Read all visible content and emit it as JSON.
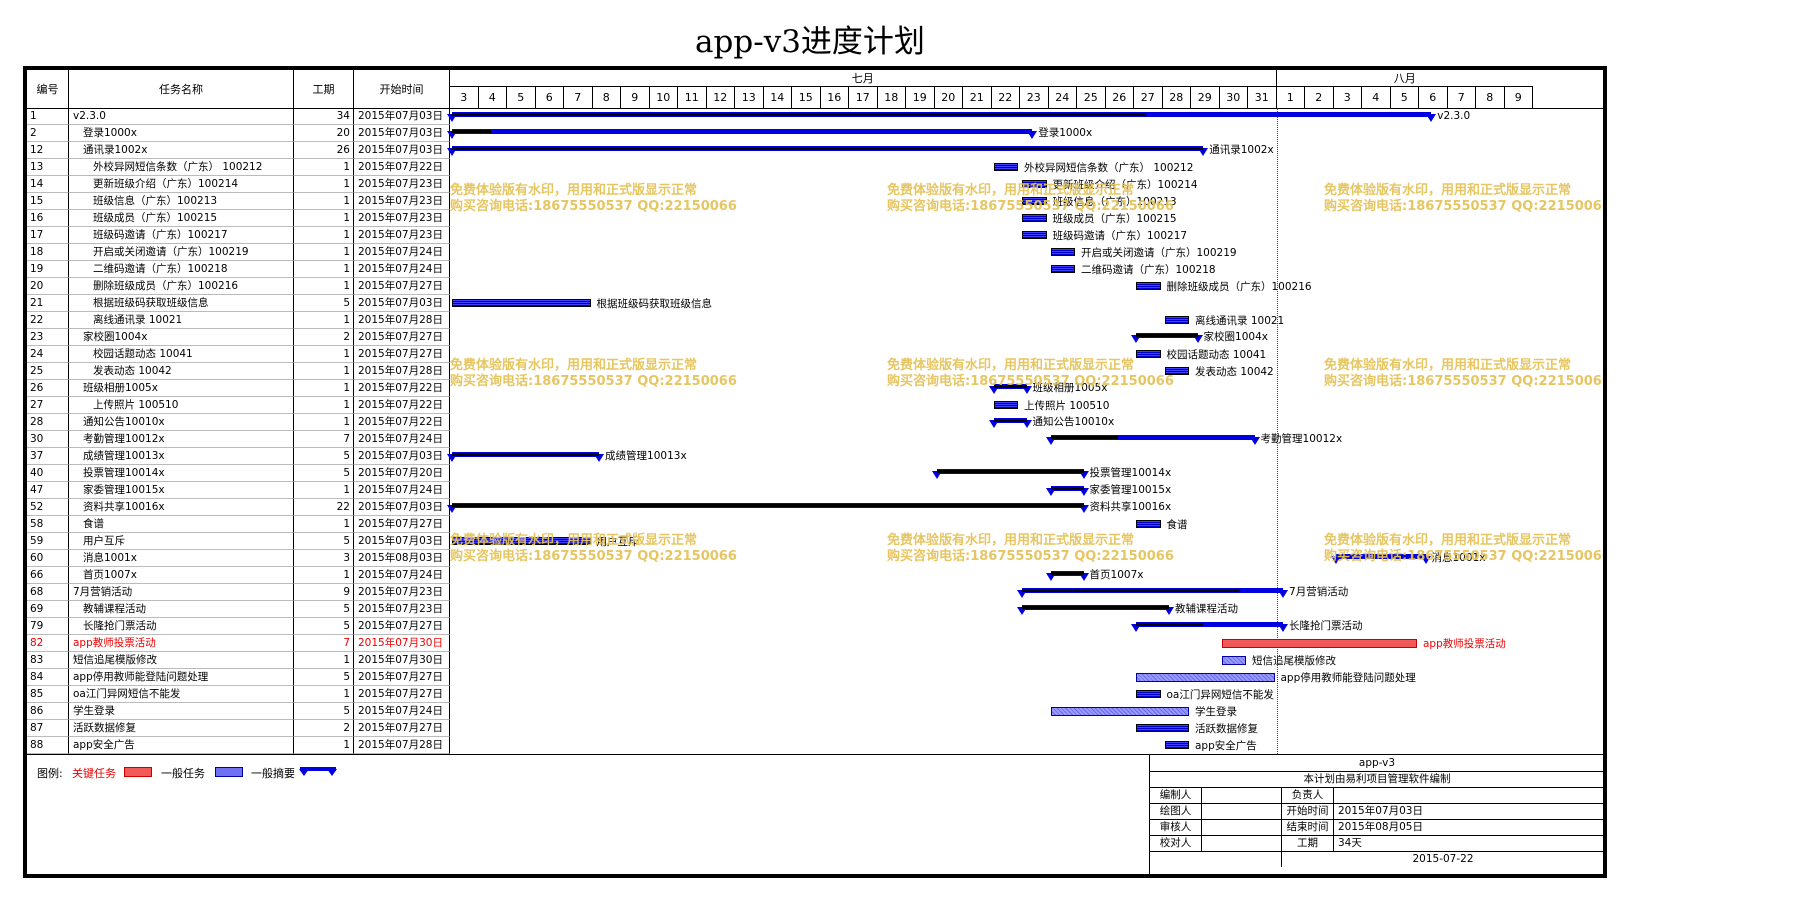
{
  "title": "app-v3进度计划",
  "columns": {
    "id": "编号",
    "name": "任务名称",
    "duration": "工期",
    "start": "开始时间"
  },
  "months": [
    {
      "label": "七月"
    },
    {
      "label": "八月"
    }
  ],
  "days": [
    "3",
    "4",
    "5",
    "6",
    "7",
    "8",
    "9",
    "10",
    "11",
    "12",
    "13",
    "14",
    "15",
    "16",
    "17",
    "18",
    "19",
    "20",
    "21",
    "22",
    "23",
    "24",
    "25",
    "26",
    "27",
    "28",
    "29",
    "30",
    "31",
    "1",
    "2",
    "3",
    "4",
    "5",
    "6",
    "7",
    "8",
    "9"
  ],
  "tasks": [
    {
      "id": "1",
      "name": "v2.3.0",
      "indent": 0,
      "duration": "34",
      "start": "2015年07月03日",
      "type": "summary",
      "bar_start_day": 0,
      "bar_days": 34.5,
      "progress_days": 24.5,
      "label": "v2.3.0"
    },
    {
      "id": "2",
      "name": "登录1000x",
      "indent": 1,
      "duration": "20",
      "start": "2015年07月03日",
      "type": "summary",
      "bar_start_day": 0,
      "bar_days": 20.5,
      "progress_days": 1.5,
      "label": "登录1000x"
    },
    {
      "id": "12",
      "name": "通讯录1002x",
      "indent": 1,
      "duration": "26",
      "start": "2015年07月03日",
      "type": "summary",
      "bar_start_day": 0,
      "bar_days": 26.5,
      "progress_days": 26.5,
      "label": "通讯录1002x"
    },
    {
      "id": "13",
      "name": "外校异网短信条数（广东） 100212",
      "indent": 2,
      "duration": "1",
      "start": "2015年07月22日",
      "type": "task",
      "bar_start_day": 19,
      "bar_days": 1,
      "label": "外校异网短信条数（广东） 100212"
    },
    {
      "id": "14",
      "name": "更新班级介绍（广东）100214",
      "indent": 2,
      "duration": "1",
      "start": "2015年07月23日",
      "type": "task",
      "bar_start_day": 20,
      "bar_days": 1,
      "label": "更新班级介绍（广东）100214"
    },
    {
      "id": "15",
      "name": "班级信息（广东）100213",
      "indent": 2,
      "duration": "1",
      "start": "2015年07月23日",
      "type": "task",
      "bar_start_day": 20,
      "bar_days": 1,
      "label": "班级信息（广东）100213"
    },
    {
      "id": "16",
      "name": "班级成员（广东）100215",
      "indent": 2,
      "duration": "1",
      "start": "2015年07月23日",
      "type": "task",
      "bar_start_day": 20,
      "bar_days": 1,
      "label": "班级成员（广东）100215"
    },
    {
      "id": "17",
      "name": "班级码邀请（广东）100217",
      "indent": 2,
      "duration": "1",
      "start": "2015年07月23日",
      "type": "task",
      "bar_start_day": 20,
      "bar_days": 1,
      "label": "班级码邀请（广东）100217"
    },
    {
      "id": "18",
      "name": "开启或关闭邀请（广东）100219",
      "indent": 2,
      "duration": "1",
      "start": "2015年07月24日",
      "type": "task",
      "bar_start_day": 21,
      "bar_days": 1,
      "label": "开启或关闭邀请（广东）100219"
    },
    {
      "id": "19",
      "name": "二维码邀请（广东）100218",
      "indent": 2,
      "duration": "1",
      "start": "2015年07月24日",
      "type": "task",
      "bar_start_day": 21,
      "bar_days": 1,
      "label": "二维码邀请（广东）100218"
    },
    {
      "id": "20",
      "name": "删除班级成员（广东）100216",
      "indent": 2,
      "duration": "1",
      "start": "2015年07月27日",
      "type": "task",
      "bar_start_day": 24,
      "bar_days": 1,
      "label": "删除班级成员（广东）100216"
    },
    {
      "id": "21",
      "name": "根据班级码获取班级信息",
      "indent": 2,
      "duration": "5",
      "start": "2015年07月03日",
      "type": "task",
      "bar_start_day": 0,
      "bar_days": 5,
      "label": "根据班级码获取班级信息"
    },
    {
      "id": "22",
      "name": "离线通讯录 10021",
      "indent": 2,
      "duration": "1",
      "start": "2015年07月28日",
      "type": "task",
      "bar_start_day": 25,
      "bar_days": 1,
      "label": "离线通讯录 10021"
    },
    {
      "id": "23",
      "name": "家校圈1004x",
      "indent": 1,
      "duration": "2",
      "start": "2015年07月27日",
      "type": "summary",
      "bar_start_day": 24,
      "bar_days": 2.3,
      "progress_days": 2.3,
      "label": "家校圈1004x"
    },
    {
      "id": "24",
      "name": "校园话题动态 10041",
      "indent": 2,
      "duration": "1",
      "start": "2015年07月27日",
      "type": "task",
      "bar_start_day": 24,
      "bar_days": 1,
      "label": "校园话题动态 10041"
    },
    {
      "id": "25",
      "name": "发表动态 10042",
      "indent": 2,
      "duration": "1",
      "start": "2015年07月28日",
      "type": "task",
      "bar_start_day": 25,
      "bar_days": 1,
      "label": "发表动态 10042"
    },
    {
      "id": "26",
      "name": "班级相册1005x",
      "indent": 1,
      "duration": "1",
      "start": "2015年07月22日",
      "type": "summary",
      "bar_start_day": 19,
      "bar_days": 1.3,
      "progress_days": 1.3,
      "label": "班级相册1005x"
    },
    {
      "id": "27",
      "name": "上传照片 100510",
      "indent": 2,
      "duration": "1",
      "start": "2015年07月22日",
      "type": "task",
      "bar_start_day": 19,
      "bar_days": 1,
      "label": "上传照片 100510"
    },
    {
      "id": "28",
      "name": "通知公告10010x",
      "indent": 1,
      "duration": "1",
      "start": "2015年07月22日",
      "type": "summary",
      "bar_start_day": 19,
      "bar_days": 1.3,
      "progress_days": 1.3,
      "label": "通知公告10010x"
    },
    {
      "id": "30",
      "name": "考勤管理10012x",
      "indent": 1,
      "duration": "7",
      "start": "2015年07月24日",
      "type": "summary",
      "bar_start_day": 21,
      "bar_days": 7.3,
      "progress_days": 2.5,
      "label": "考勤管理10012x"
    },
    {
      "id": "37",
      "name": "成绩管理10013x",
      "indent": 1,
      "duration": "5",
      "start": "2015年07月03日",
      "type": "summary",
      "bar_start_day": 0,
      "bar_days": 5.3,
      "progress_days": 5.3,
      "label": "成绩管理10013x"
    },
    {
      "id": "40",
      "name": "投票管理10014x",
      "indent": 1,
      "duration": "5",
      "start": "2015年07月20日",
      "type": "summary",
      "bar_start_day": 17,
      "bar_days": 5.3,
      "progress_days": 5.3,
      "label": "投票管理10014x"
    },
    {
      "id": "47",
      "name": "家委管理10015x",
      "indent": 1,
      "duration": "1",
      "start": "2015年07月24日",
      "type": "summary",
      "bar_start_day": 21,
      "bar_days": 1.3,
      "progress_days": 1.3,
      "label": "家委管理10015x"
    },
    {
      "id": "52",
      "name": "资料共享10016x",
      "indent": 1,
      "duration": "22",
      "start": "2015年07月03日",
      "type": "summary",
      "bar_start_day": 0,
      "bar_days": 22.3,
      "progress_days": 22.3,
      "label": "资料共享10016x"
    },
    {
      "id": "58",
      "name": "食谱",
      "indent": 1,
      "duration": "1",
      "start": "2015年07月27日",
      "type": "task",
      "bar_start_day": 24,
      "bar_days": 1,
      "label": "食谱"
    },
    {
      "id": "59",
      "name": "用户互斥",
      "indent": 1,
      "duration": "5",
      "start": "2015年07月03日",
      "type": "task",
      "bar_start_day": 0,
      "bar_days": 5,
      "label": "用户互斥"
    },
    {
      "id": "60",
      "name": "消息1001x",
      "indent": 1,
      "duration": "3",
      "start": "2015年08月03日",
      "type": "summary",
      "bar_start_day": 31,
      "bar_days": 3.3,
      "progress_days": 0,
      "label": "消息1001x"
    },
    {
      "id": "66",
      "name": "首页1007x",
      "indent": 1,
      "duration": "1",
      "start": "2015年07月24日",
      "type": "summary",
      "bar_start_day": 21,
      "bar_days": 1.3,
      "progress_days": 1.3,
      "label": "首页1007x"
    },
    {
      "id": "68",
      "name": "7月营销活动",
      "indent": 0,
      "duration": "9",
      "start": "2015年07月23日",
      "type": "summary",
      "bar_start_day": 20,
      "bar_days": 9.3,
      "progress_days": 7.8,
      "label": "7月营销活动"
    },
    {
      "id": "69",
      "name": "教辅课程活动",
      "indent": 1,
      "duration": "5",
      "start": "2015年07月23日",
      "type": "summary",
      "bar_start_day": 20,
      "bar_days": 5.3,
      "progress_days": 5.3,
      "label": "教辅课程活动"
    },
    {
      "id": "79",
      "name": "长隆抢门票活动",
      "indent": 1,
      "duration": "5",
      "start": "2015年07月27日",
      "type": "summary",
      "bar_start_day": 24,
      "bar_days": 5.3,
      "progress_days": 2.5,
      "label": "长隆抢门票活动"
    },
    {
      "id": "82",
      "name": "app教师投票活动",
      "indent": 0,
      "duration": "7",
      "start": "2015年07月30日",
      "type": "critical",
      "bar_start_day": 27,
      "bar_days": 7,
      "label": "app教师投票活动"
    },
    {
      "id": "83",
      "name": "短信追尾模版修改",
      "indent": 0,
      "duration": "1",
      "start": "2015年07月30日",
      "type": "plain",
      "bar_start_day": 27,
      "bar_days": 1,
      "label": "短信追尾模版修改"
    },
    {
      "id": "84",
      "name": "app停用教师能登陆问题处理",
      "indent": 0,
      "duration": "5",
      "start": "2015年07月27日",
      "type": "plain",
      "bar_start_day": 24,
      "bar_days": 5,
      "label": "app停用教师能登陆问题处理"
    },
    {
      "id": "85",
      "name": "oa江门异网短信不能发",
      "indent": 0,
      "duration": "1",
      "start": "2015年07月27日",
      "type": "task",
      "bar_start_day": 24,
      "bar_days": 1,
      "label": "oa江门异网短信不能发"
    },
    {
      "id": "86",
      "name": "学生登录",
      "indent": 0,
      "duration": "5",
      "start": "2015年07月24日",
      "type": "plain",
      "bar_start_day": 21,
      "bar_days": 5,
      "label": "学生登录"
    },
    {
      "id": "87",
      "name": "活跃数据修复",
      "indent": 0,
      "duration": "2",
      "start": "2015年07月27日",
      "type": "task",
      "bar_start_day": 24,
      "bar_days": 2,
      "label": "活跃数据修复"
    },
    {
      "id": "88",
      "name": "app安全广告",
      "indent": 0,
      "duration": "1",
      "start": "2015年07月28日",
      "type": "task",
      "bar_start_day": 25,
      "bar_days": 1,
      "label": "app安全广告"
    }
  ],
  "watermark": {
    "line1": "免费体验版有水印，用用和正式版显示正常",
    "line2": "购买咨询电话:18675550537 QQ:22150066"
  },
  "legend": {
    "label": "图例:",
    "critical": "关键任务",
    "general": "一般任务",
    "summary": "一般摘要"
  },
  "info": {
    "project": "app-v3",
    "compiled_by_software": "本计划由易利项目管理软件编制",
    "editor_label": "编制人",
    "editor": "",
    "owner_label": "负责人",
    "owner": "",
    "drawer_label": "绘图人",
    "drawer": "",
    "start_label": "开始时间",
    "start": "2015年07月03日",
    "reviewer_label": "审核人",
    "reviewer": "",
    "end_label": "结束时间",
    "end": "2015年08月05日",
    "checker_label": "校对人",
    "checker": "",
    "duration_label": "工期",
    "duration": "34天",
    "date": "2015-07-22"
  },
  "colors": {
    "summary": "#0000e0",
    "critical": "#f25a5a",
    "task": "#2020e0",
    "watermark": "#e5c35a",
    "critical_text": "#e00000"
  }
}
